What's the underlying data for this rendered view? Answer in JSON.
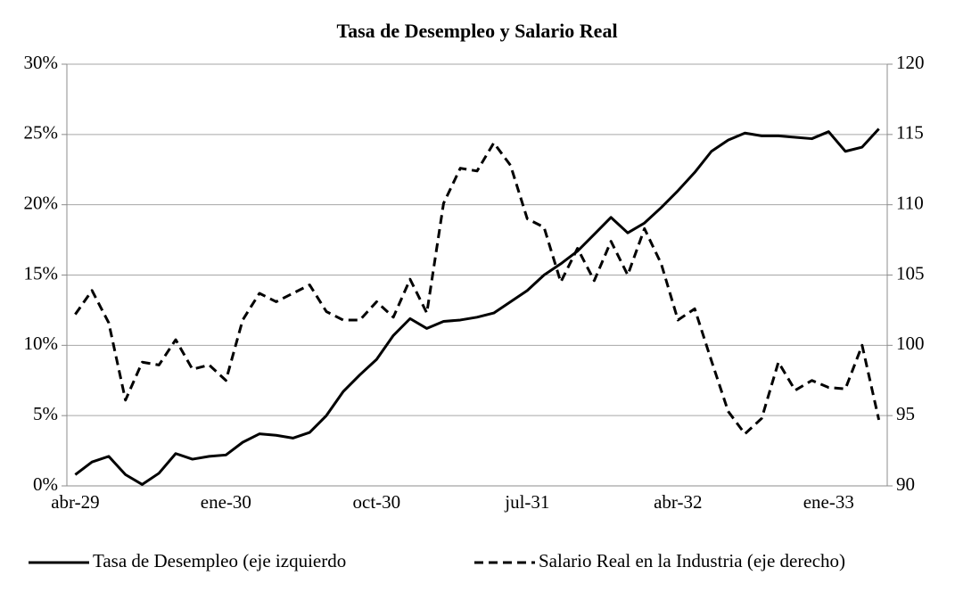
{
  "chart_data": {
    "type": "line",
    "title": "Tasa de Desempleo y Salario Real",
    "categories": [
      "abr-29",
      null,
      null,
      null,
      null,
      null,
      null,
      null,
      null,
      "ene-30",
      null,
      null,
      null,
      null,
      null,
      null,
      null,
      null,
      "oct-30",
      null,
      null,
      null,
      null,
      null,
      null,
      null,
      null,
      "jul-31",
      null,
      null,
      null,
      null,
      null,
      null,
      null,
      null,
      "abr-32",
      null,
      null,
      null,
      null,
      null,
      null,
      null,
      null,
      "ene-33",
      null,
      null,
      null
    ],
    "series": [
      {
        "name": "Tasa de Desempleo (eje izquierdo",
        "color": "#000000",
        "dash": false,
        "values": [
          0.8,
          1.7,
          2.1,
          0.8,
          0.1,
          0.9,
          2.3,
          1.9,
          2.1,
          2.2,
          3.1,
          3.7,
          3.6,
          3.4,
          3.8,
          5.0,
          6.7,
          7.9,
          9.0,
          10.7,
          11.9,
          11.2,
          11.7,
          11.8,
          12.0,
          12.3,
          13.1,
          13.9,
          15.0,
          15.8,
          16.7,
          17.9,
          19.1,
          18.0,
          18.7,
          19.8,
          21.0,
          22.3,
          23.8,
          24.6,
          25.1,
          24.9,
          24.9,
          24.8,
          24.7,
          25.2,
          23.8,
          24.1,
          25.4
        ]
      },
      {
        "name": "Salario Real en la Industria (eje derecho)",
        "color": "#000000",
        "dash": true,
        "axis": "y2",
        "values": [
          102.2,
          103.9,
          101.6,
          96.1,
          98.8,
          98.6,
          100.4,
          98.3,
          98.6,
          97.5,
          101.8,
          103.7,
          103.1,
          103.7,
          104.3,
          102.4,
          101.8,
          101.8,
          103.1,
          102.0,
          104.7,
          102.3,
          110.1,
          112.6,
          112.4,
          114.4,
          112.8,
          109.0,
          108.4,
          104.5,
          106.9,
          104.6,
          107.4,
          105.0,
          108.3,
          105.8,
          101.8,
          102.6,
          98.9,
          95.3,
          93.7,
          94.8,
          98.8,
          96.8,
          97.5,
          97.0,
          96.9,
          100.0,
          94.7
        ]
      }
    ],
    "ylim": [
      0,
      30
    ],
    "yticks": [
      {
        "value": 0,
        "label": "0%"
      },
      {
        "value": 5,
        "label": "5%"
      },
      {
        "value": 10,
        "label": "10%"
      },
      {
        "value": 15,
        "label": "15%"
      },
      {
        "value": 20,
        "label": "20%"
      },
      {
        "value": 25,
        "label": "25%"
      },
      {
        "value": 30,
        "label": "30%"
      }
    ],
    "y2lim": [
      90,
      120
    ],
    "y2ticks": [
      90,
      95,
      100,
      105,
      110,
      115,
      120
    ],
    "grid": true,
    "legend": "bottom"
  }
}
